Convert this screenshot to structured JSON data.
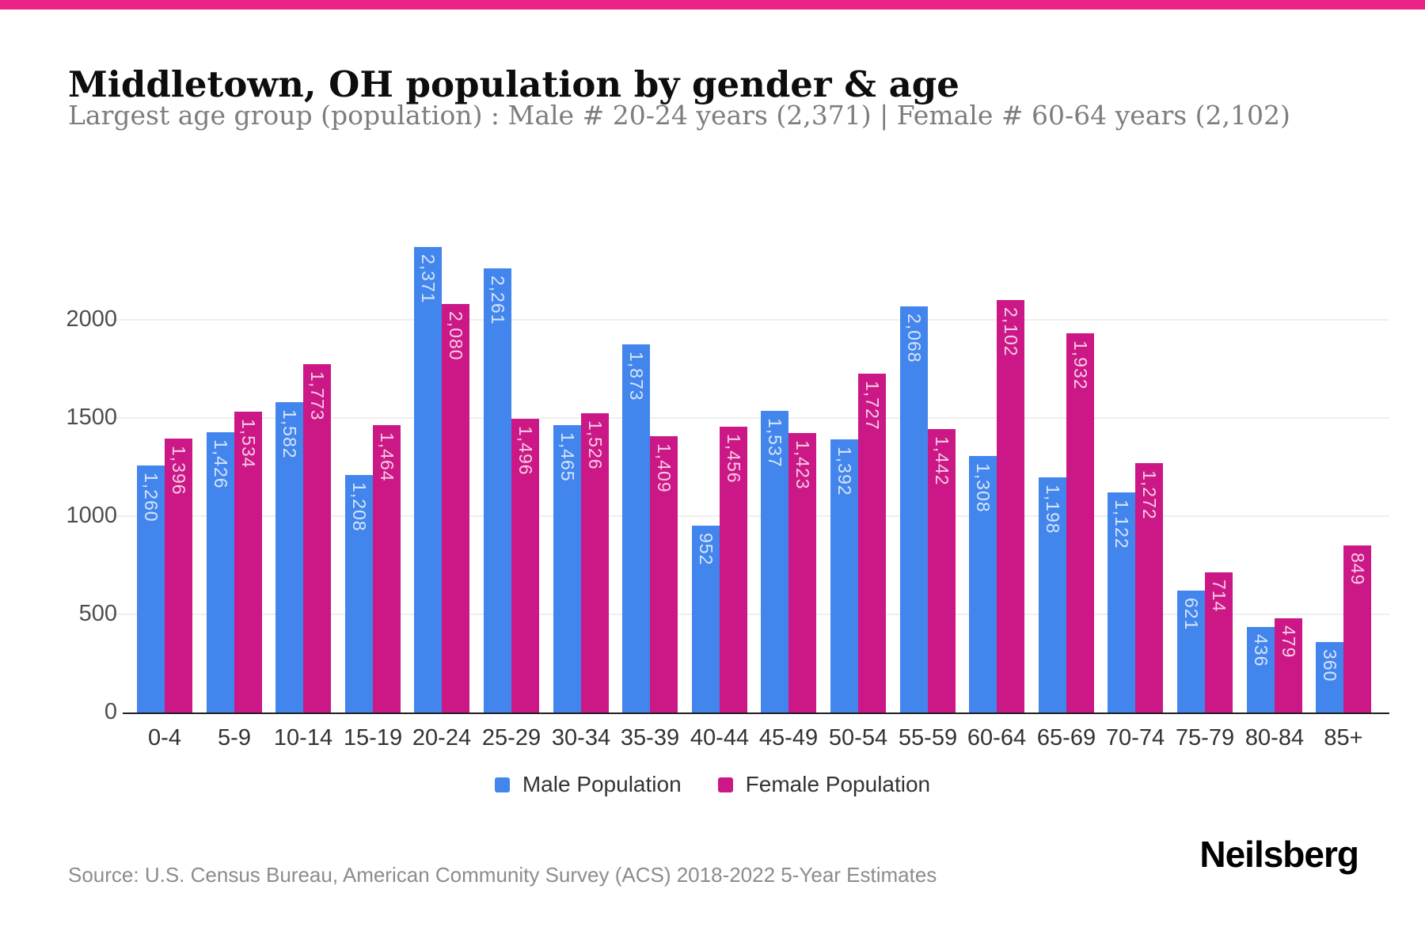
{
  "page": {
    "accent_color": "#eb2188",
    "title": "Middletown, OH population by gender & age",
    "subtitle": "Largest age group (population) : Male # 20-24 years (2,371) | Female # 60-64 years (2,102)",
    "source": "Source: U.S. Census Bureau, American Community Survey (ACS) 2018-2022 5-Year Estimates",
    "brand": "Neilsberg"
  },
  "chart_data": {
    "type": "bar",
    "title": "Middletown, OH population by gender & age",
    "categories": [
      "0-4",
      "5-9",
      "10-14",
      "15-19",
      "20-24",
      "25-29",
      "30-34",
      "35-39",
      "40-44",
      "45-49",
      "50-54",
      "55-59",
      "60-64",
      "65-69",
      "70-74",
      "75-79",
      "80-84",
      "85+"
    ],
    "series": [
      {
        "name": "Male Population",
        "color": "#4285ec",
        "values": [
          1260,
          1426,
          1582,
          1208,
          2371,
          2261,
          1465,
          1873,
          952,
          1537,
          1392,
          2068,
          1308,
          1198,
          1122,
          621,
          436,
          360
        ]
      },
      {
        "name": "Female Population",
        "color": "#cc1786",
        "values": [
          1396,
          1534,
          1773,
          1464,
          2080,
          1496,
          1526,
          1409,
          1456,
          1423,
          1727,
          1442,
          2102,
          1932,
          1272,
          714,
          479,
          849
        ]
      }
    ],
    "xlabel": "",
    "ylabel": "",
    "ylim": [
      0,
      2400
    ],
    "yticks": [
      0,
      500,
      1000,
      1500,
      2000
    ],
    "grid": true,
    "legend_position": "bottom",
    "bar_value_labels": true
  }
}
